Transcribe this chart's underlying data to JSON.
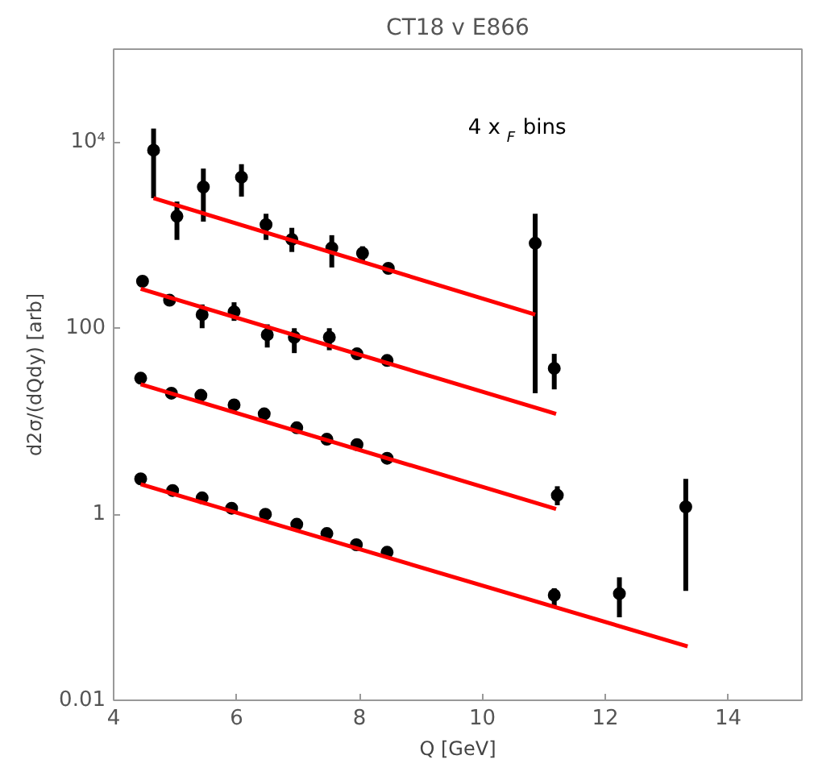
{
  "chart_data": {
    "type": "scatter",
    "title": "CT18 v E866",
    "xlabel": "Q [GeV]",
    "ylabel": "d2σ/(dQdy) [arb]",
    "annotations": [
      "4 x$_{F}$ bins"
    ],
    "log": "y",
    "grid": false,
    "xlim": [
      4,
      15.2
    ],
    "xticks": [
      4,
      6,
      8,
      10,
      12,
      14
    ],
    "ylim": [
      0.01,
      100000
    ],
    "yticks": [
      0.01,
      1,
      100,
      {
        "value": 10000,
        "label": "10⁴"
      }
    ],
    "series": [
      {
        "marker": "circle",
        "color": "#000000",
        "x": [
          4.65,
          5.03,
          5.46,
          6.08,
          6.48,
          6.9,
          7.55,
          8.05,
          8.47,
          10.86
        ],
        "values": [
          8200,
          1600,
          3300,
          4200,
          1300,
          900,
          730,
          640,
          440,
          820
        ],
        "errors": [
          [
            2500,
            14000
          ],
          [
            890,
            2300
          ],
          [
            1400,
            5200
          ],
          [
            2600,
            5800
          ],
          [
            890,
            1700
          ],
          [
            660,
            1200
          ],
          [
            450,
            1000
          ],
          [
            520,
            760
          ],
          null,
          [
            20,
            1700
          ]
        ]
      },
      {
        "marker": "circle",
        "color": "#000000",
        "x": [
          4.47,
          4.91,
          5.44,
          5.96,
          6.5,
          6.94,
          7.51,
          7.96,
          8.45,
          11.17
        ],
        "values": [
          320,
          200,
          140,
          150,
          85,
          80,
          80,
          53,
          45,
          37
        ],
        "errors": [
          null,
          null,
          [
            100,
            180
          ],
          [
            120,
            190
          ],
          [
            62,
            110
          ],
          [
            54,
            100
          ],
          [
            58,
            100
          ],
          null,
          null,
          [
            22,
            53
          ]
        ]
      },
      {
        "marker": "circle",
        "color": "#000000",
        "x": [
          4.44,
          4.94,
          5.42,
          5.96,
          6.45,
          6.98,
          7.47,
          7.96,
          8.45,
          11.22
        ],
        "values": [
          29,
          20,
          19,
          15,
          12,
          8.5,
          6.4,
          5.6,
          4.0,
          1.6
        ],
        "errors": [
          null,
          null,
          null,
          null,
          null,
          null,
          null,
          null,
          null,
          [
            1.25,
            2.0
          ]
        ]
      },
      {
        "marker": "circle",
        "color": "#000000",
        "x": [
          4.44,
          4.96,
          5.44,
          5.92,
          6.47,
          6.98,
          7.47,
          7.95,
          8.45,
          11.17,
          12.23,
          13.31
        ],
        "values": [
          2.4,
          1.8,
          1.5,
          1.16,
          1.0,
          0.78,
          0.62,
          0.47,
          0.39,
          0.135,
          0.14,
          1.2
        ],
        "errors": [
          null,
          null,
          null,
          null,
          null,
          null,
          null,
          null,
          null,
          [
            0.1,
            0.16
          ],
          [
            0.078,
            0.21
          ],
          [
            0.15,
            2.4
          ]
        ]
      },
      {
        "type": "line",
        "marker": "none",
        "color": "#ff0000",
        "x": [
          4.65,
          10.86
        ],
        "values": [
          2500,
          140
        ]
      },
      {
        "type": "line",
        "marker": "none",
        "color": "#ff0000",
        "x": [
          4.44,
          11.2
        ],
        "values": [
          265,
          12
        ]
      },
      {
        "type": "line",
        "marker": "none",
        "color": "#ff0000",
        "x": [
          4.44,
          11.2
        ],
        "values": [
          25,
          1.14
        ]
      },
      {
        "type": "line",
        "marker": "none",
        "color": "#ff0000",
        "x": [
          4.44,
          13.34
        ],
        "values": [
          2.1,
          0.038
        ]
      }
    ]
  }
}
